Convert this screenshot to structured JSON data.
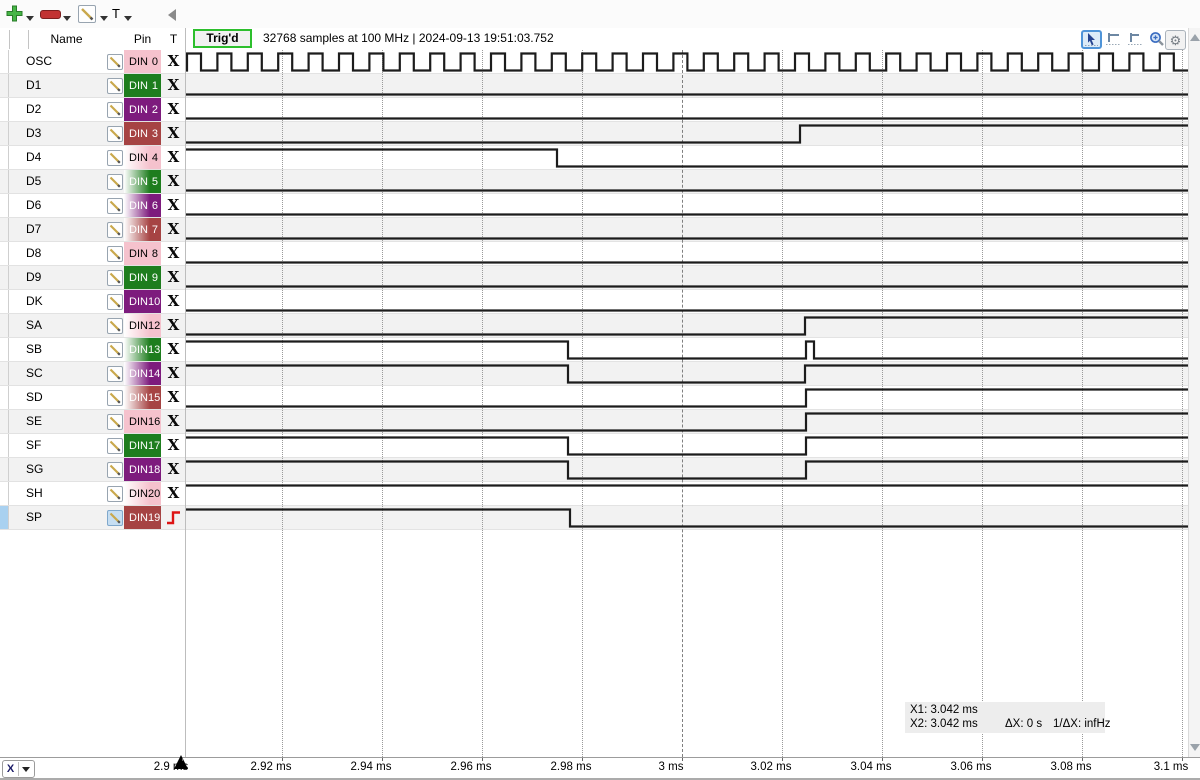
{
  "toolbar": {
    "trigger_menu_label": "T",
    "icons": [
      "add-channel-icon",
      "remove-channel-icon",
      "edit-channel-icon",
      "trigger-menu",
      "collapse-panel-icon"
    ]
  },
  "columns": {
    "name": "Name",
    "pin": "Pin",
    "t": "T"
  },
  "capture": {
    "trig_label": "Trig'd",
    "status": "32768 samples at 100 MHz | 2024-09-13 19:51:03.752"
  },
  "view_tools": [
    "select-tool-icon",
    "x1-cursor-icon",
    "x2-cursor-icon",
    "zoom-icon",
    "settings-gear-icon"
  ],
  "colors": {
    "pink": "#f5c2cd",
    "green": "#1e7d1e",
    "purple": "#7d1b7d",
    "red": "#a64343",
    "accent_green": "#2dbf2d",
    "select_blue": "#a9d1f0",
    "trigger_red": "#dd1414",
    "wave": "#1c1c1c",
    "row_alt": "#f2f2f2"
  },
  "channels": [
    {
      "name": "OSC",
      "pin": "DIN",
      "num": "0",
      "color": "pink",
      "gradient": false,
      "trigger": "any",
      "selected": false,
      "wave": {
        "type": "clock",
        "t0": 187,
        "period": 30.4,
        "high": 14
      }
    },
    {
      "name": "D1",
      "pin": "DIN",
      "num": "1",
      "color": "green",
      "gradient": false,
      "trigger": "any",
      "selected": false,
      "wave": {
        "start": "low",
        "toggles": []
      }
    },
    {
      "name": "D2",
      "pin": "DIN",
      "num": "2",
      "color": "purple",
      "gradient": false,
      "trigger": "any",
      "selected": false,
      "wave": {
        "start": "low",
        "toggles": []
      }
    },
    {
      "name": "D3",
      "pin": "DIN",
      "num": "3",
      "color": "red",
      "gradient": false,
      "trigger": "any",
      "selected": false,
      "wave": {
        "start": "low",
        "toggles": [
          800
        ]
      }
    },
    {
      "name": "D4",
      "pin": "DIN",
      "num": "4",
      "color": "pink",
      "gradient": true,
      "trigger": "any",
      "selected": false,
      "wave": {
        "start": "high",
        "toggles": [
          557
        ]
      }
    },
    {
      "name": "D5",
      "pin": "DIN",
      "num": "5",
      "color": "green",
      "gradient": true,
      "trigger": "any",
      "selected": false,
      "wave": {
        "start": "low",
        "toggles": []
      }
    },
    {
      "name": "D6",
      "pin": "DIN",
      "num": "6",
      "color": "purple",
      "gradient": true,
      "trigger": "any",
      "selected": false,
      "wave": {
        "start": "low",
        "toggles": []
      }
    },
    {
      "name": "D7",
      "pin": "DIN",
      "num": "7",
      "color": "red",
      "gradient": true,
      "trigger": "any",
      "selected": false,
      "wave": {
        "start": "low",
        "toggles": []
      }
    },
    {
      "name": "D8",
      "pin": "DIN",
      "num": "8",
      "color": "pink",
      "gradient": false,
      "trigger": "any",
      "selected": false,
      "wave": {
        "start": "low",
        "toggles": []
      }
    },
    {
      "name": "D9",
      "pin": "DIN",
      "num": "9",
      "color": "green",
      "gradient": false,
      "trigger": "any",
      "selected": false,
      "wave": {
        "start": "low",
        "toggles": []
      }
    },
    {
      "name": "DK",
      "pin": "DIN",
      "num": "10",
      "color": "purple",
      "gradient": false,
      "trigger": "any",
      "selected": false,
      "wave": {
        "start": "low",
        "toggles": []
      }
    },
    {
      "name": "SA",
      "pin": "DIN",
      "num": "12",
      "color": "pink",
      "gradient": true,
      "trigger": "any",
      "selected": false,
      "wave": {
        "start": "low",
        "toggles": [
          805
        ]
      }
    },
    {
      "name": "SB",
      "pin": "DIN",
      "num": "13",
      "color": "green",
      "gradient": true,
      "trigger": "any",
      "selected": false,
      "wave": {
        "start": "high",
        "toggles": [
          568,
          806,
          814
        ]
      }
    },
    {
      "name": "SC",
      "pin": "DIN",
      "num": "14",
      "color": "purple",
      "gradient": true,
      "trigger": "any",
      "selected": false,
      "wave": {
        "start": "high",
        "toggles": [
          568,
          805
        ]
      }
    },
    {
      "name": "SD",
      "pin": "DIN",
      "num": "15",
      "color": "red",
      "gradient": true,
      "trigger": "any",
      "selected": false,
      "wave": {
        "start": "low",
        "toggles": [
          806
        ]
      }
    },
    {
      "name": "SE",
      "pin": "DIN",
      "num": "16",
      "color": "pink",
      "gradient": false,
      "trigger": "any",
      "selected": false,
      "wave": {
        "start": "low",
        "toggles": [
          806
        ]
      }
    },
    {
      "name": "SF",
      "pin": "DIN",
      "num": "17",
      "color": "green",
      "gradient": false,
      "trigger": "any",
      "selected": false,
      "wave": {
        "start": "high",
        "toggles": [
          568,
          806
        ]
      }
    },
    {
      "name": "SG",
      "pin": "DIN",
      "num": "18",
      "color": "purple",
      "gradient": false,
      "trigger": "any",
      "selected": false,
      "wave": {
        "start": "high",
        "toggles": [
          568,
          806
        ]
      }
    },
    {
      "name": "SH",
      "pin": "DIN",
      "num": "20",
      "color": "pink",
      "gradient": true,
      "trigger": "any",
      "selected": false,
      "wave": {
        "start": "high",
        "toggles": []
      }
    },
    {
      "name": "SP",
      "pin": "DIN",
      "num": "19",
      "color": "red",
      "gradient": false,
      "trigger": "rising",
      "selected": true,
      "wave": {
        "start": "high",
        "toggles": [
          570
        ]
      }
    }
  ],
  "cursors": {
    "x1": "X1: 3.042 ms",
    "x2": "X2: 3.042 ms",
    "dx": "ΔX: 0 s",
    "inv_dx": "1/ΔX: infHz"
  },
  "timeline": {
    "mode": "X",
    "ticks": [
      "2.9 ms",
      "2.92 ms",
      "2.94 ms",
      "2.96 ms",
      "2.98 ms",
      "3 ms",
      "3.02 ms",
      "3.04 ms",
      "3.06 ms",
      "3.08 ms",
      "3.1 ms"
    ]
  }
}
